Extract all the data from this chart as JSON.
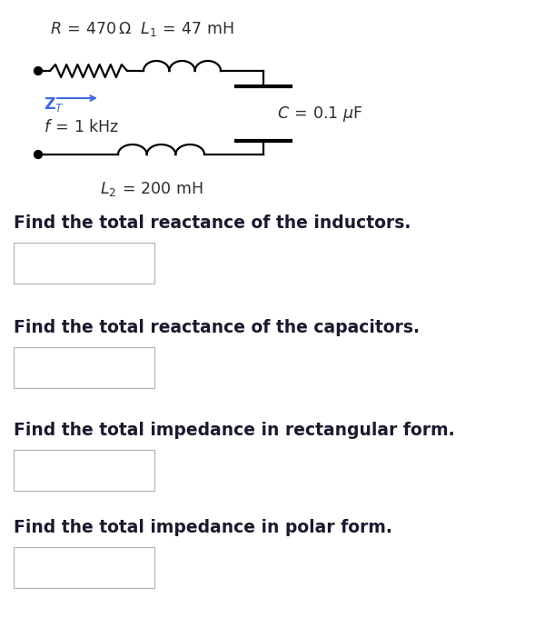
{
  "bg_color": "#ffffff",
  "line_color": "#000000",
  "text_color": "#1a1a2e",
  "circuit_text_color": "#2d2d2d",
  "questions": [
    "Find the total reactance of the inductors.",
    "Find the total reactance of the capacitors.",
    "Find the total impedance in rectangular form.",
    "Find the total impedance in polar form."
  ],
  "figsize": [
    5.89,
    7.02
  ],
  "dpi": 100,
  "arrow_color": "#4169e1",
  "zt_color": "#4169e1"
}
